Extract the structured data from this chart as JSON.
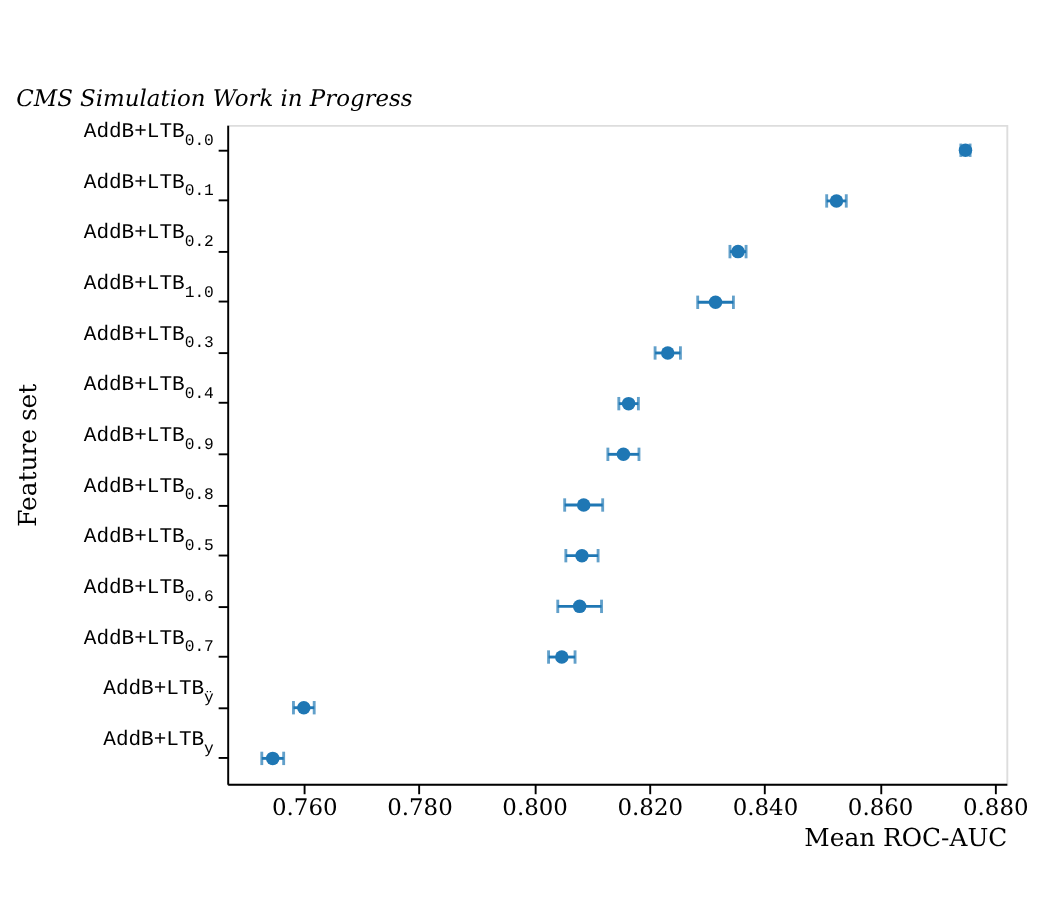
{
  "chart_data": {
    "type": "scatter",
    "orientation": "horizontal",
    "title": "CMS Simulation Work in Progress",
    "xlabel": "Mean ROC-AUC",
    "ylabel": "Feature set",
    "categories": [
      "AddB+LTB$_{0.0}$",
      "AddB+LTB$_{0.1}$",
      "AddB+LTB$_{0.2}$",
      "AddB+LTB$_{1.0}$",
      "AddB+LTB$_{0.3}$",
      "AddB+LTB$_{0.4}$",
      "AddB+LTB$_{0.9}$",
      "AddB+LTB$_{0.8}$",
      "AddB+LTB$_{0.5}$",
      "AddB+LTB$_{0.6}$",
      "AddB+LTB$_{0.7}$",
      "AddB+LTB$_{ÿ}$",
      "AddB+LTB$_{y}$"
    ],
    "series": [
      {
        "color": "#1f77b4",
        "values": [
          0.8749,
          0.8525,
          0.8354,
          0.8315,
          0.8232,
          0.8164,
          0.8155,
          0.8086,
          0.8083,
          0.8079,
          0.8048,
          0.76,
          0.7546
        ],
        "errors": [
          0.0008,
          0.0017,
          0.0014,
          0.0031,
          0.0022,
          0.0017,
          0.0027,
          0.0033,
          0.0028,
          0.0038,
          0.0023,
          0.0018,
          0.0019
        ]
      }
    ],
    "xlim": [
      0.7467,
      0.882
    ],
    "xticks": [
      {
        "value": 0.76,
        "label": "0.760"
      },
      {
        "value": 0.78,
        "label": "0.780"
      },
      {
        "value": 0.8,
        "label": "0.800"
      },
      {
        "value": 0.82,
        "label": "0.820"
      },
      {
        "value": 0.84,
        "label": "0.840"
      },
      {
        "value": 0.86,
        "label": "0.860"
      },
      {
        "value": 0.88,
        "label": "0.880"
      }
    ],
    "marker": "circle",
    "grid": false,
    "legend": false
  }
}
